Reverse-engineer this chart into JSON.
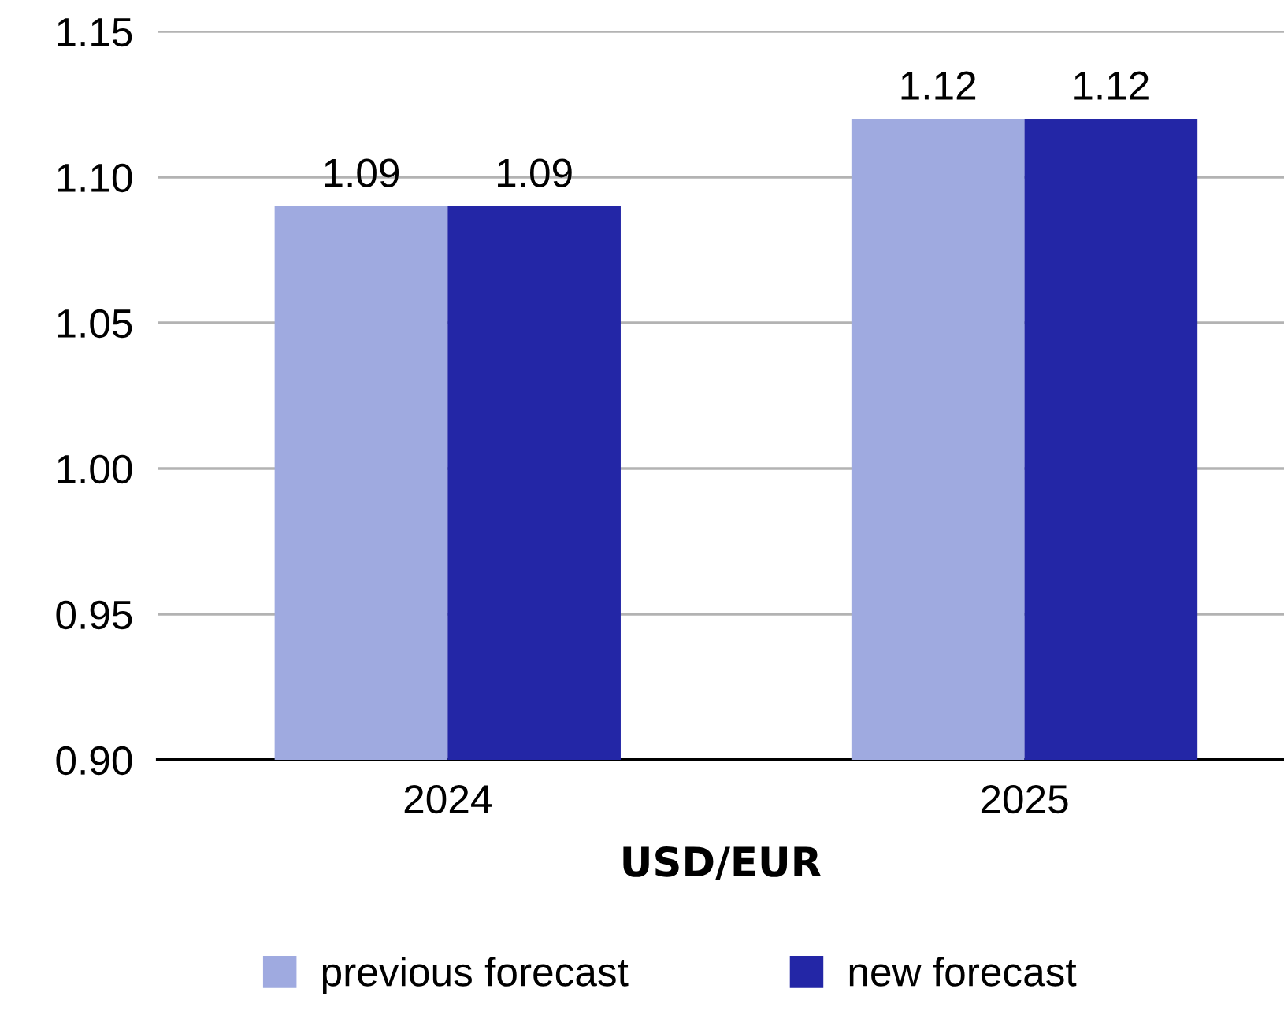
{
  "chart_data": {
    "type": "bar",
    "xlabel": "USD/EUR",
    "categories": [
      "2024",
      "2025"
    ],
    "series": [
      {
        "name": "previous forecast",
        "color": "#9faae0",
        "values": [
          1.09,
          1.12
        ]
      },
      {
        "name": "new forecast",
        "color": "#2326a6",
        "values": [
          1.09,
          1.12
        ]
      }
    ],
    "ylim": [
      0.9,
      1.15
    ],
    "yticks": [
      {
        "value": 0.9,
        "label": "0.90"
      },
      {
        "value": 0.95,
        "label": "0.95"
      },
      {
        "value": 1.0,
        "label": "1.00"
      },
      {
        "value": 1.05,
        "label": "1.05"
      },
      {
        "value": 1.1,
        "label": "1.10"
      },
      {
        "value": 1.15,
        "label": "1.15"
      }
    ],
    "grid": "y",
    "legend": "bottom",
    "data_labels": true
  }
}
